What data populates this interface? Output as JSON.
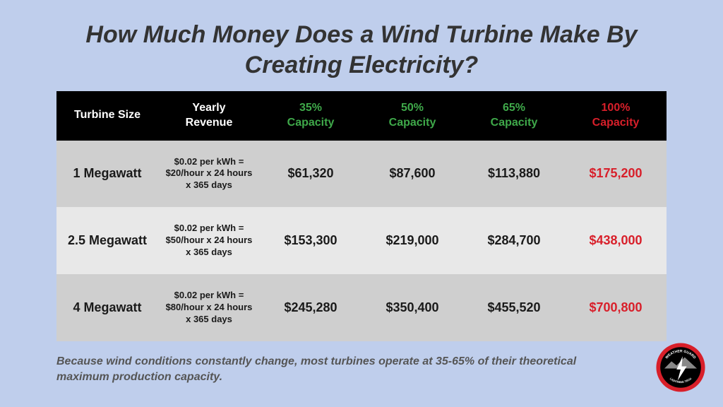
{
  "title": "How Much Money Does a Wind Turbine Make By Creating Electricity?",
  "background_color": "#bfceec",
  "table": {
    "header_bg": "#000000",
    "header_fg": "#ffffff",
    "green_fg": "#3fa94a",
    "red_fg": "#d81f2a",
    "row_dark_bg": "#cfcfcf",
    "row_light_bg": "#e8e8e8",
    "columns": [
      {
        "label": "Turbine Size",
        "color": "white"
      },
      {
        "label": "Yearly\nRevenue",
        "color": "white"
      },
      {
        "label": "35%\nCapacity",
        "color": "green"
      },
      {
        "label": "50%\nCapacity",
        "color": "green"
      },
      {
        "label": "65%\nCapacity",
        "color": "green"
      },
      {
        "label": "100%\nCapacity",
        "color": "red"
      }
    ],
    "rows": [
      {
        "shade": "dark",
        "size": "1 Megawatt",
        "formula": "$0.02 per kWh = $20/hour x 24 hours x 365 days",
        "c35": "$61,320",
        "c50": "$87,600",
        "c65": "$113,880",
        "c100": "$175,200"
      },
      {
        "shade": "light",
        "size": "2.5 Megawatt",
        "formula": "$0.02 per kWh = $50/hour x 24 hours x 365 days",
        "c35": "$153,300",
        "c50": "$219,000",
        "c65": "$284,700",
        "c100": "$438,000"
      },
      {
        "shade": "dark",
        "size": "4 Megawatt",
        "formula": "$0.02 per kWh = $80/hour x 24 hours x 365 days",
        "c35": "$245,280",
        "c50": "$350,400",
        "c65": "$455,520",
        "c100": "$700,800"
      }
    ]
  },
  "footnote": "Because wind conditions constantly change, most turbines operate at 35-65% of their theoretical maximum production capacity.",
  "logo": {
    "top_text": "WEATHER GUARD",
    "bottom_text": "LIGHTNING TECH",
    "ring_color": "#d81f2a",
    "inner_bg": "#000000",
    "bolt_color": "#ffffff",
    "mountain_color": "#888888"
  }
}
